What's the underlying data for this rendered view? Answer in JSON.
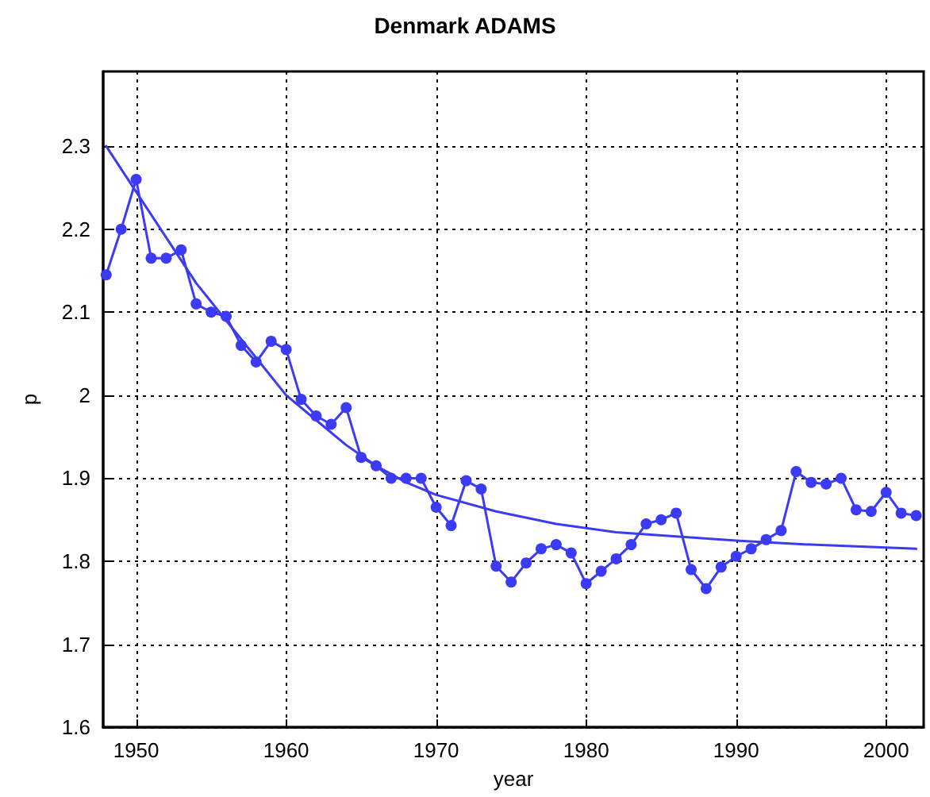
{
  "chart_data": {
    "type": "line",
    "title": "Denmark ADAMS",
    "xlabel": "year",
    "ylabel": "p",
    "xlim": [
      1947.8,
      2002.5
    ],
    "xticks": [
      1950,
      1960,
      1970,
      1980,
      1990,
      2000
    ],
    "ylim": [
      1.6,
      2.39
    ],
    "yticks": [
      1.6,
      1.7,
      1.8,
      1.9,
      2,
      2.1,
      2.2,
      2.3
    ],
    "grid": true,
    "line_style": "solid",
    "series": [
      {
        "color": "#3b3bf5",
        "marker": "circle",
        "x": [
          1948,
          1949,
          1950,
          1951,
          1952,
          1953,
          1954,
          1955,
          1956,
          1957,
          1958,
          1959,
          1960,
          1961,
          1962,
          1963,
          1964,
          1965,
          1966,
          1967,
          1968,
          1969,
          1970,
          1971,
          1972,
          1973,
          1974,
          1975,
          1976,
          1977,
          1978,
          1979,
          1980,
          1981,
          1982,
          1983,
          1984,
          1985,
          1986,
          1987,
          1988,
          1989,
          1990,
          1991,
          1992,
          1993,
          1994,
          1995,
          1996,
          1997,
          1998,
          1999,
          2000,
          2001,
          2002
        ],
        "values": [
          2.145,
          2.2,
          2.26,
          2.165,
          2.165,
          2.175,
          2.11,
          2.1,
          2.095,
          2.06,
          2.04,
          2.065,
          2.055,
          1.995,
          1.975,
          1.965,
          1.985,
          1.925,
          1.915,
          1.9,
          1.9,
          1.9,
          1.865,
          1.843,
          1.897,
          1.887,
          1.794,
          1.775,
          1.798,
          1.815,
          1.82,
          1.81,
          1.773,
          1.788,
          1.803,
          1.82,
          1.845,
          1.85,
          1.858,
          1.79,
          1.767,
          1.793,
          1.806,
          1.815,
          1.826,
          1.837,
          1.908,
          1.895,
          1.893,
          1.9,
          1.862,
          1.86,
          1.883,
          1.858,
          1.855
        ]
      },
      {
        "color": "#3b3bf5",
        "marker": "none",
        "x": [
          1948,
          1950,
          1952,
          1954,
          1956,
          1958,
          1960,
          1962,
          1964,
          1966,
          1968,
          1970,
          1974,
          1978,
          1982,
          1986,
          1990,
          1995,
          2002
        ],
        "values": [
          2.3,
          2.245,
          2.19,
          2.135,
          2.09,
          2.045,
          2.0,
          1.97,
          1.94,
          1.915,
          1.895,
          1.88,
          1.86,
          1.845,
          1.835,
          1.83,
          1.825,
          1.82,
          1.815
        ]
      }
    ]
  }
}
